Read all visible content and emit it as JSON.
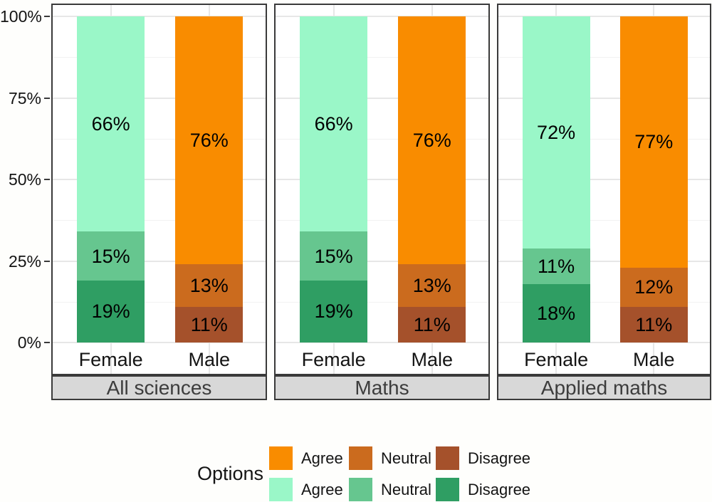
{
  "chart_data": {
    "type": "bar",
    "stacked": true,
    "orientation": "vertical",
    "unit": "%",
    "title": "",
    "grid": true,
    "y_axis": {
      "tick_labels": [
        "0%",
        "25%",
        "50%",
        "75%",
        "100%"
      ],
      "tick_values": [
        0,
        25,
        50,
        75,
        100
      ],
      "minor_tick_values": [
        12.5,
        37.5,
        62.5,
        87.5
      ],
      "range": [
        0,
        100
      ]
    },
    "x_categories": [
      "Female",
      "Male"
    ],
    "facets": [
      {
        "name": "All sciences",
        "bars": [
          {
            "category": "Female",
            "palette": "female",
            "segments": [
              {
                "option": "Agree",
                "value": 66
              },
              {
                "option": "Neutral",
                "value": 15
              },
              {
                "option": "Disagree",
                "value": 19
              }
            ]
          },
          {
            "category": "Male",
            "palette": "male",
            "segments": [
              {
                "option": "Agree",
                "value": 76
              },
              {
                "option": "Neutral",
                "value": 13
              },
              {
                "option": "Disagree",
                "value": 11
              }
            ]
          }
        ]
      },
      {
        "name": "Maths",
        "bars": [
          {
            "category": "Female",
            "palette": "female",
            "segments": [
              {
                "option": "Agree",
                "value": 66
              },
              {
                "option": "Neutral",
                "value": 15
              },
              {
                "option": "Disagree",
                "value": 19
              }
            ]
          },
          {
            "category": "Male",
            "palette": "male",
            "segments": [
              {
                "option": "Agree",
                "value": 76
              },
              {
                "option": "Neutral",
                "value": 13
              },
              {
                "option": "Disagree",
                "value": 11
              }
            ]
          }
        ]
      },
      {
        "name": "Applied maths",
        "bars": [
          {
            "category": "Female",
            "palette": "female",
            "segments": [
              {
                "option": "Agree",
                "value": 72
              },
              {
                "option": "Neutral",
                "value": 11
              },
              {
                "option": "Disagree",
                "value": 18
              }
            ]
          },
          {
            "category": "Male",
            "palette": "male",
            "segments": [
              {
                "option": "Agree",
                "value": 77
              },
              {
                "option": "Neutral",
                "value": 12
              },
              {
                "option": "Disagree",
                "value": 11
              }
            ]
          }
        ]
      }
    ],
    "palettes": {
      "male": {
        "Agree": "#F98C00",
        "Neutral": "#CB6B1E",
        "Disagree": "#A5512B"
      },
      "female": {
        "Agree": "#9AF7C8",
        "Neutral": "#66C68F",
        "Disagree": "#2F9E63"
      }
    },
    "legend": {
      "title": "Options",
      "position": "bottom",
      "rows": [
        [
          {
            "label": "Agree",
            "color": "#F98C00"
          },
          {
            "label": "Neutral",
            "color": "#CB6B1E"
          },
          {
            "label": "Disagree",
            "color": "#A5512B"
          }
        ],
        [
          {
            "label": "Agree",
            "color": "#9AF7C8"
          },
          {
            "label": "Neutral",
            "color": "#66C68F"
          },
          {
            "label": "Disagree",
            "color": "#2F9E63"
          }
        ]
      ]
    }
  }
}
